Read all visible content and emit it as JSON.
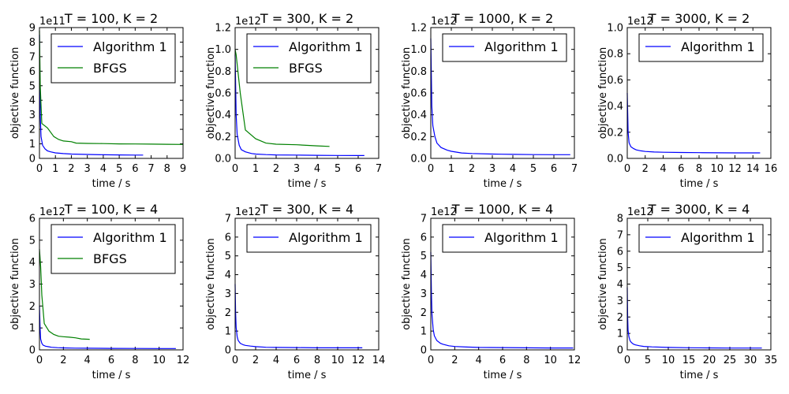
{
  "chart_data": [
    {
      "type": "line",
      "title": "T = 100, K = 2",
      "xlabel": "time / s",
      "ylabel": "objective function",
      "y_exponent": "1e11",
      "xlim": [
        0,
        9
      ],
      "ylim": [
        0,
        9
      ],
      "xticks": [
        "0",
        "1",
        "2",
        "3",
        "4",
        "5",
        "6",
        "7",
        "8",
        "9"
      ],
      "yticks": [
        "0",
        "1",
        "2",
        "3",
        "4",
        "5",
        "6",
        "7",
        "8",
        "9"
      ],
      "legend": "top-right",
      "series": [
        {
          "name": "Algorithm 1",
          "color": "#0000ff",
          "x": [
            0.0,
            0.05,
            0.1,
            0.2,
            0.35,
            0.5,
            0.7,
            1.0,
            1.5,
            2.0,
            3.0,
            4.0,
            5.0,
            6.0,
            6.5
          ],
          "y": [
            8.5,
            3.0,
            1.5,
            0.9,
            0.65,
            0.52,
            0.45,
            0.38,
            0.33,
            0.3,
            0.27,
            0.25,
            0.24,
            0.23,
            0.23
          ]
        },
        {
          "name": "BFGS",
          "color": "#008000",
          "x": [
            0.0,
            0.05,
            0.15,
            0.5,
            0.9,
            1.2,
            1.5,
            2.0,
            2.3,
            3.0,
            4.0,
            5.0,
            6.0,
            7.0,
            8.0,
            9.0
          ],
          "y": [
            8.8,
            5.0,
            2.4,
            2.1,
            1.5,
            1.3,
            1.2,
            1.15,
            1.05,
            1.03,
            1.02,
            1.0,
            0.99,
            0.98,
            0.97,
            0.96
          ]
        }
      ]
    },
    {
      "type": "line",
      "title": "T = 300, K = 2",
      "xlabel": "time / s",
      "ylabel": "objective function",
      "y_exponent": "1e12",
      "xlim": [
        0,
        7
      ],
      "ylim": [
        0,
        1.2
      ],
      "xticks": [
        "0",
        "1",
        "2",
        "3",
        "4",
        "5",
        "6",
        "7"
      ],
      "yticks": [
        "0.0",
        "0.2",
        "0.4",
        "0.6",
        "0.8",
        "1.0",
        "1.2"
      ],
      "legend": "top-right",
      "series": [
        {
          "name": "Algorithm 1",
          "color": "#0000ff",
          "x": [
            0.0,
            0.05,
            0.1,
            0.2,
            0.3,
            0.5,
            0.8,
            1.0,
            1.5,
            2.0,
            3.0,
            4.0,
            5.0,
            6.0,
            6.3
          ],
          "y": [
            0.95,
            0.4,
            0.22,
            0.12,
            0.08,
            0.06,
            0.045,
            0.04,
            0.035,
            0.032,
            0.03,
            0.028,
            0.027,
            0.026,
            0.026
          ]
        },
        {
          "name": "BFGS",
          "color": "#008000",
          "x": [
            0.0,
            0.05,
            0.25,
            0.5,
            1.0,
            1.5,
            2.0,
            3.0,
            4.0,
            4.6
          ],
          "y": [
            1.0,
            0.95,
            0.6,
            0.26,
            0.18,
            0.14,
            0.13,
            0.125,
            0.115,
            0.11
          ]
        }
      ]
    },
    {
      "type": "line",
      "title": "T = 1000, K = 2",
      "xlabel": "time / s",
      "ylabel": "objective function",
      "y_exponent": "1e12",
      "xlim": [
        0,
        7
      ],
      "ylim": [
        0,
        1.2
      ],
      "xticks": [
        "0",
        "1",
        "2",
        "3",
        "4",
        "5",
        "6",
        "7"
      ],
      "yticks": [
        "0.0",
        "0.2",
        "0.4",
        "0.6",
        "0.8",
        "1.0",
        "1.2"
      ],
      "legend": "top-right",
      "series": [
        {
          "name": "Algorithm 1",
          "color": "#0000ff",
          "x": [
            0.0,
            0.05,
            0.1,
            0.2,
            0.3,
            0.5,
            0.8,
            1.0,
            1.5,
            2.0,
            3.0,
            4.0,
            5.0,
            6.0,
            6.8
          ],
          "y": [
            1.1,
            0.48,
            0.3,
            0.2,
            0.14,
            0.1,
            0.075,
            0.065,
            0.05,
            0.045,
            0.04,
            0.037,
            0.035,
            0.034,
            0.034
          ]
        }
      ]
    },
    {
      "type": "line",
      "title": "T = 3000, K = 2",
      "xlabel": "time / s",
      "ylabel": "objective function",
      "y_exponent": "1e12",
      "xlim": [
        0,
        16
      ],
      "ylim": [
        0,
        1.0
      ],
      "xticks": [
        "0",
        "2",
        "4",
        "6",
        "8",
        "10",
        "12",
        "14",
        "16"
      ],
      "yticks": [
        "0.0",
        "0.2",
        "0.4",
        "0.6",
        "0.8",
        "1.0"
      ],
      "legend": "top-right",
      "series": [
        {
          "name": "Algorithm 1",
          "color": "#0000ff",
          "x": [
            0.0,
            0.1,
            0.2,
            0.4,
            0.7,
            1.0,
            1.5,
            2.0,
            3.0,
            4.0,
            6.0,
            8.0,
            10.0,
            12.0,
            14.0,
            14.8
          ],
          "y": [
            0.5,
            0.2,
            0.12,
            0.09,
            0.075,
            0.065,
            0.058,
            0.053,
            0.049,
            0.047,
            0.045,
            0.044,
            0.043,
            0.042,
            0.042,
            0.042
          ]
        }
      ]
    },
    {
      "type": "line",
      "title": "T = 100, K = 4",
      "xlabel": "time / s",
      "ylabel": "objective function",
      "y_exponent": "1e12",
      "xlim": [
        0,
        12
      ],
      "ylim": [
        0,
        6
      ],
      "xticks": [
        "0",
        "2",
        "4",
        "6",
        "8",
        "10",
        "12"
      ],
      "yticks": [
        "0",
        "1",
        "2",
        "3",
        "4",
        "5",
        "6"
      ],
      "legend": "top-right",
      "series": [
        {
          "name": "Algorithm 1",
          "color": "#0000ff",
          "x": [
            0.0,
            0.05,
            0.1,
            0.2,
            0.3,
            0.5,
            0.8,
            1.0,
            1.5,
            2.0,
            3.0,
            4.0,
            6.0,
            8.0,
            10.0,
            11.4
          ],
          "y": [
            2.0,
            1.0,
            0.5,
            0.3,
            0.22,
            0.17,
            0.14,
            0.12,
            0.1,
            0.09,
            0.08,
            0.075,
            0.07,
            0.065,
            0.06,
            0.06
          ]
        },
        {
          "name": "BFGS",
          "color": "#008000",
          "x": [
            0.0,
            0.1,
            0.2,
            0.4,
            0.8,
            1.2,
            1.6,
            2.0,
            2.5,
            3.0,
            3.5,
            4.2
          ],
          "y": [
            4.6,
            3.8,
            2.5,
            1.2,
            0.85,
            0.7,
            0.62,
            0.6,
            0.58,
            0.55,
            0.5,
            0.48
          ]
        }
      ]
    },
    {
      "type": "line",
      "title": "T = 300, K = 4",
      "xlabel": "time / s",
      "ylabel": "objective function",
      "y_exponent": "1e12",
      "xlim": [
        0,
        14
      ],
      "ylim": [
        0,
        7
      ],
      "xticks": [
        "0",
        "2",
        "4",
        "6",
        "8",
        "10",
        "12",
        "14"
      ],
      "yticks": [
        "0",
        "1",
        "2",
        "3",
        "4",
        "5",
        "6",
        "7"
      ],
      "legend": "top-right",
      "series": [
        {
          "name": "Algorithm 1",
          "color": "#0000ff",
          "x": [
            0.0,
            0.05,
            0.1,
            0.2,
            0.3,
            0.5,
            0.8,
            1.0,
            1.5,
            2.0,
            3.0,
            4.0,
            6.0,
            8.0,
            10.0,
            12.0,
            12.4
          ],
          "y": [
            3.5,
            2.0,
            1.2,
            0.7,
            0.5,
            0.35,
            0.27,
            0.24,
            0.2,
            0.17,
            0.14,
            0.13,
            0.12,
            0.11,
            0.11,
            0.11,
            0.11
          ]
        }
      ]
    },
    {
      "type": "line",
      "title": "T = 1000, K = 4",
      "xlabel": "time / s",
      "ylabel": "objective function",
      "y_exponent": "1e12",
      "xlim": [
        0,
        12
      ],
      "ylim": [
        0,
        7
      ],
      "xticks": [
        "0",
        "2",
        "4",
        "6",
        "8",
        "10",
        "12"
      ],
      "yticks": [
        "0",
        "1",
        "2",
        "3",
        "4",
        "5",
        "6",
        "7"
      ],
      "legend": "top-right",
      "series": [
        {
          "name": "Algorithm 1",
          "color": "#0000ff",
          "x": [
            0.0,
            0.05,
            0.1,
            0.2,
            0.3,
            0.5,
            0.8,
            1.0,
            1.5,
            2.0,
            3.0,
            4.0,
            6.0,
            8.0,
            10.0,
            11.9
          ],
          "y": [
            5.2,
            3.0,
            1.9,
            1.1,
            0.75,
            0.5,
            0.35,
            0.3,
            0.22,
            0.18,
            0.15,
            0.13,
            0.12,
            0.11,
            0.1,
            0.1
          ]
        }
      ]
    },
    {
      "type": "line",
      "title": "T = 3000, K = 4",
      "xlabel": "time / s",
      "ylabel": "objective function",
      "y_exponent": "1e12",
      "xlim": [
        0,
        35
      ],
      "ylim": [
        0,
        8
      ],
      "xticks": [
        "0",
        "5",
        "10",
        "15",
        "20",
        "25",
        "30",
        "35"
      ],
      "yticks": [
        "0",
        "1",
        "2",
        "3",
        "4",
        "5",
        "6",
        "7",
        "8"
      ],
      "legend": "top-right",
      "series": [
        {
          "name": "Algorithm 1",
          "color": "#0000ff",
          "x": [
            0.0,
            0.1,
            0.2,
            0.4,
            0.7,
            1.0,
            1.5,
            2.0,
            3.0,
            4.0,
            6.0,
            10.0,
            15.0,
            20.0,
            25.0,
            30.0,
            32.8
          ],
          "y": [
            3.8,
            2.0,
            1.2,
            0.8,
            0.55,
            0.45,
            0.35,
            0.3,
            0.25,
            0.21,
            0.18,
            0.15,
            0.13,
            0.12,
            0.11,
            0.11,
            0.11
          ]
        }
      ]
    }
  ]
}
